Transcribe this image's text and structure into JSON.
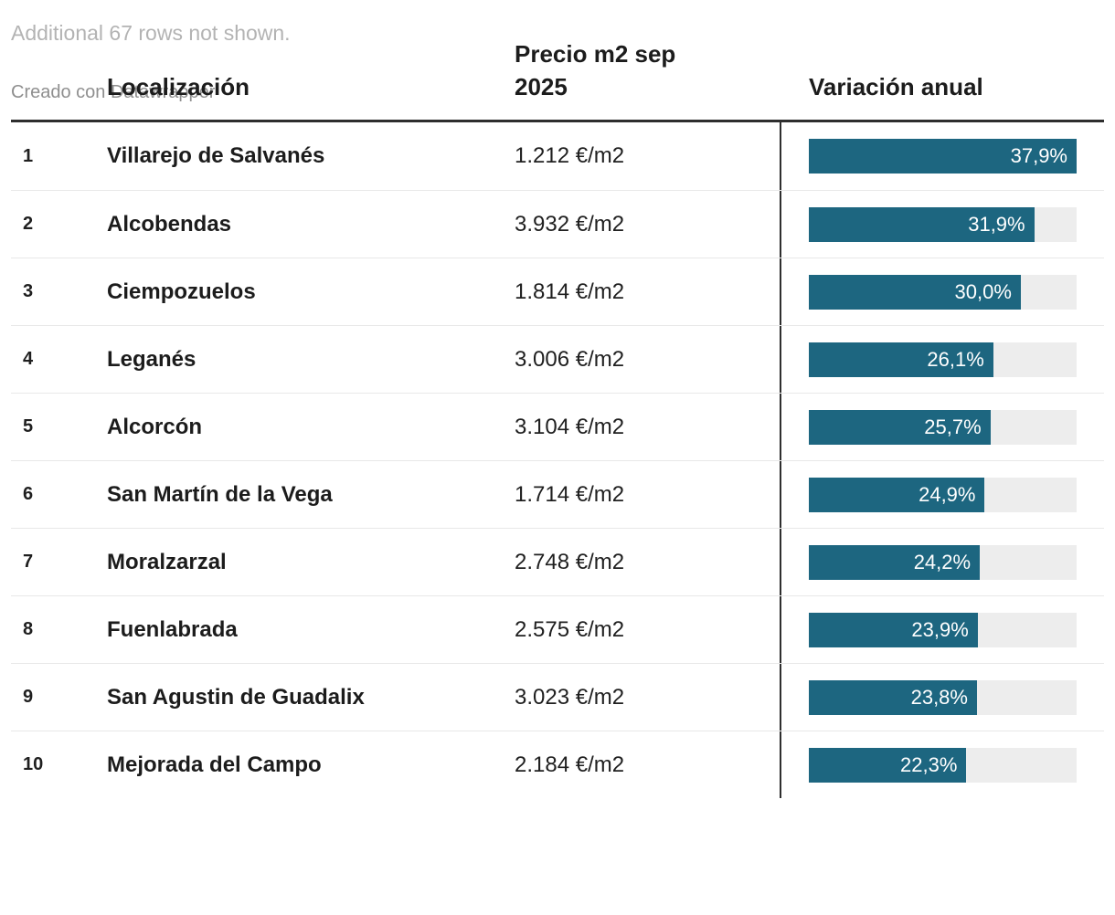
{
  "colors": {
    "bar_fill": "#1d6680",
    "bar_track": "#ededed",
    "header_rule": "#2e2e2e",
    "row_divider": "#e8e8e8",
    "text": "#1f1f1f",
    "note_text": "#b3b3b3",
    "attribution_text": "#8f8f8f"
  },
  "header": {
    "rank_label": "",
    "location_label": "Localización",
    "price_label": "Precio m2 sep 2025",
    "variation_label": "Variación anual"
  },
  "bar_max_pct": 37.9,
  "rows": [
    {
      "rank": "1",
      "location": "Villarejo de Salvanés",
      "price": "1.212 €/m2",
      "variation_label": "37,9%",
      "variation_pct": 37.9
    },
    {
      "rank": "2",
      "location": "Alcobendas",
      "price": "3.932 €/m2",
      "variation_label": "31,9%",
      "variation_pct": 31.9
    },
    {
      "rank": "3",
      "location": "Ciempozuelos",
      "price": "1.814 €/m2",
      "variation_label": "30,0%",
      "variation_pct": 30.0
    },
    {
      "rank": "4",
      "location": "Leganés",
      "price": "3.006 €/m2",
      "variation_label": "26,1%",
      "variation_pct": 26.1
    },
    {
      "rank": "5",
      "location": "Alcorcón",
      "price": "3.104 €/m2",
      "variation_label": "25,7%",
      "variation_pct": 25.7
    },
    {
      "rank": "6",
      "location": "San Martín de la Vega",
      "price": "1.714 €/m2",
      "variation_label": "24,9%",
      "variation_pct": 24.9
    },
    {
      "rank": "7",
      "location": "Moralzarzal",
      "price": "2.748 €/m2",
      "variation_label": "24,2%",
      "variation_pct": 24.2
    },
    {
      "rank": "8",
      "location": "Fuenlabrada",
      "price": "2.575 €/m2",
      "variation_label": "23,9%",
      "variation_pct": 23.9
    },
    {
      "rank": "9",
      "location": "San Agustin de Guadalix",
      "price": "3.023 €/m2",
      "variation_label": "23,8%",
      "variation_pct": 23.8
    },
    {
      "rank": "10",
      "location": "Mejorada del Campo",
      "price": "2.184 €/m2",
      "variation_label": "22,3%",
      "variation_pct": 22.3
    }
  ],
  "footer": {
    "note": "Additional 67 rows not shown.",
    "attribution": "Creado con Datawrapper"
  },
  "chart_data": {
    "type": "table",
    "title": "",
    "columns": [
      "#",
      "Localización",
      "Precio m2 sep 2025",
      "Variación anual"
    ],
    "rows": [
      [
        "1",
        "Villarejo de Salvanés",
        "1.212 €/m2",
        "37,9%"
      ],
      [
        "2",
        "Alcobendas",
        "3.932 €/m2",
        "31,9%"
      ],
      [
        "3",
        "Ciempozuelos",
        "1.814 €/m2",
        "30,0%"
      ],
      [
        "4",
        "Leganés",
        "3.006 €/m2",
        "26,1%"
      ],
      [
        "5",
        "Alcorcón",
        "3.104 €/m2",
        "25,7%"
      ],
      [
        "6",
        "San Martín de la Vega",
        "1.714 €/m2",
        "24,9%"
      ],
      [
        "7",
        "Moralzarzal",
        "2.748 €/m2",
        "24,2%"
      ],
      [
        "8",
        "Fuenlabrada",
        "2.575 €/m2",
        "23,9%"
      ],
      [
        "9",
        "San Agustin de Guadalix",
        "3.023 €/m2",
        "23,8%"
      ],
      [
        "10",
        "Mejorada del Campo",
        "2.184 €/m2",
        "22,3%"
      ]
    ],
    "bar_column": "Variación anual",
    "bar_values_pct": [
      37.9,
      31.9,
      30.0,
      26.1,
      25.7,
      24.9,
      24.2,
      23.9,
      23.8,
      22.3
    ],
    "bar_scale": [
      0,
      37.9
    ],
    "note": "Additional 67 rows not shown.",
    "attribution": "Creado con Datawrapper"
  }
}
